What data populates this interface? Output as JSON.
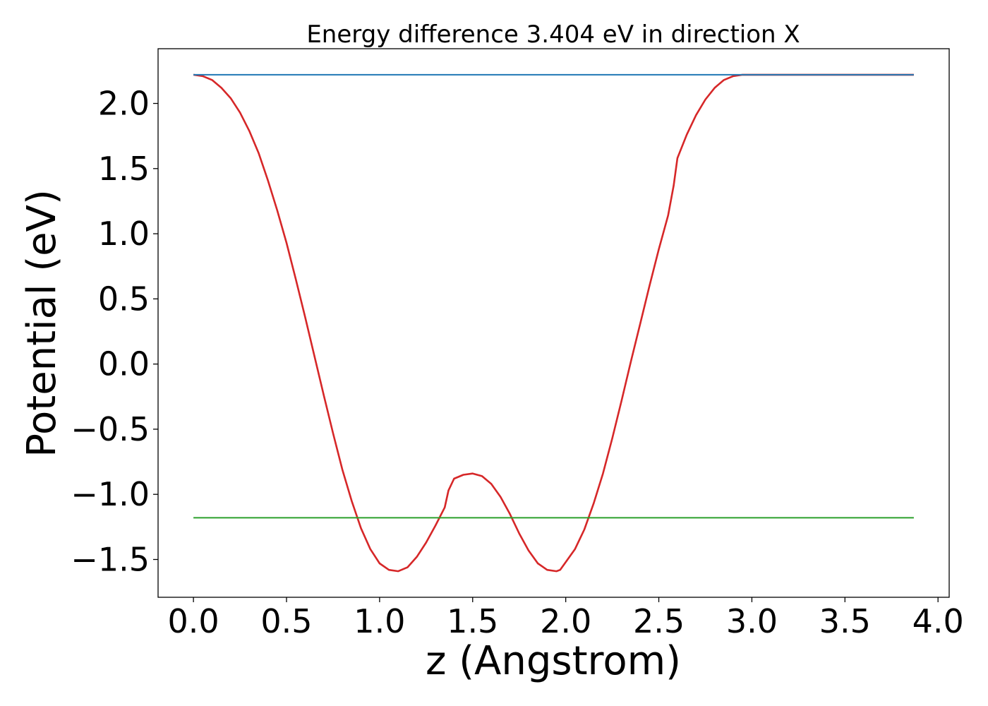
{
  "chart_data": {
    "type": "line",
    "title": "Energy difference 3.404 eV in direction X",
    "xlabel": "z (Angstrom)",
    "ylabel": "Potential (eV)",
    "xlim": [
      -0.19,
      4.06
    ],
    "ylim": [
      -1.79,
      2.42
    ],
    "xticks": [
      0.0,
      0.5,
      1.0,
      1.5,
      2.0,
      2.5,
      3.0,
      3.5,
      4.0
    ],
    "xtick_labels": [
      "0.0",
      "0.5",
      "1.0",
      "1.5",
      "2.0",
      "2.5",
      "3.0",
      "3.5",
      "4.0"
    ],
    "yticks": [
      -1.5,
      -1.0,
      -0.5,
      0.0,
      0.5,
      1.0,
      1.5,
      2.0
    ],
    "ytick_labels": [
      "−1.5",
      "−1.0",
      "−0.5",
      "0.0",
      "0.5",
      "1.0",
      "1.5",
      "2.0"
    ],
    "grid": false,
    "series": [
      {
        "color": "#d62728",
        "x": [
          0.0,
          0.05,
          0.1,
          0.15,
          0.2,
          0.25,
          0.3,
          0.35,
          0.4,
          0.45,
          0.5,
          0.55,
          0.6,
          0.65,
          0.7,
          0.75,
          0.8,
          0.85,
          0.9,
          0.95,
          1.0,
          1.05,
          1.1,
          1.15,
          1.2,
          1.25,
          1.3,
          1.35,
          1.37,
          1.4,
          1.45,
          1.5,
          1.55,
          1.6,
          1.65,
          1.7,
          1.75,
          1.8,
          1.85,
          1.9,
          1.95,
          1.97,
          2.0,
          2.05,
          2.1,
          2.15,
          2.2,
          2.25,
          2.3,
          2.35,
          2.4,
          2.45,
          2.5,
          2.55,
          2.58,
          2.6,
          2.65,
          2.7,
          2.75,
          2.8,
          2.85,
          2.9,
          2.95,
          3.0,
          3.05,
          3.1,
          3.15,
          3.2,
          3.25,
          3.3,
          3.35,
          3.4,
          3.45,
          3.5,
          3.55,
          3.6,
          3.65,
          3.7,
          3.75,
          3.8,
          3.85,
          3.87
        ],
        "y": [
          2.22,
          2.21,
          2.18,
          2.12,
          2.04,
          1.93,
          1.79,
          1.62,
          1.41,
          1.18,
          0.93,
          0.65,
          0.36,
          0.06,
          -0.24,
          -0.53,
          -0.81,
          -1.05,
          -1.26,
          -1.42,
          -1.53,
          -1.58,
          -1.59,
          -1.56,
          -1.48,
          -1.37,
          -1.24,
          -1.1,
          -0.97,
          -0.88,
          -0.85,
          -0.84,
          -0.86,
          -0.92,
          -1.02,
          -1.15,
          -1.3,
          -1.43,
          -1.53,
          -1.58,
          -1.59,
          -1.58,
          -1.52,
          -1.42,
          -1.27,
          -1.07,
          -0.84,
          -0.57,
          -0.28,
          0.02,
          0.31,
          0.6,
          0.88,
          1.14,
          1.37,
          1.58,
          1.76,
          1.91,
          2.03,
          2.12,
          2.18,
          2.21,
          2.22,
          2.22,
          2.22,
          2.22,
          2.22,
          2.22,
          2.22,
          2.22,
          2.22,
          2.22,
          2.22,
          2.22,
          2.22,
          2.22,
          2.22,
          2.22,
          2.22,
          2.22,
          2.22,
          2.22
        ]
      },
      {
        "color": "#1f77b4",
        "x": [
          0.0,
          3.87
        ],
        "y": [
          2.22,
          2.22
        ]
      },
      {
        "color": "#2ca02c",
        "x": [
          0.0,
          3.87
        ],
        "y": [
          -1.18,
          -1.18
        ]
      }
    ]
  }
}
